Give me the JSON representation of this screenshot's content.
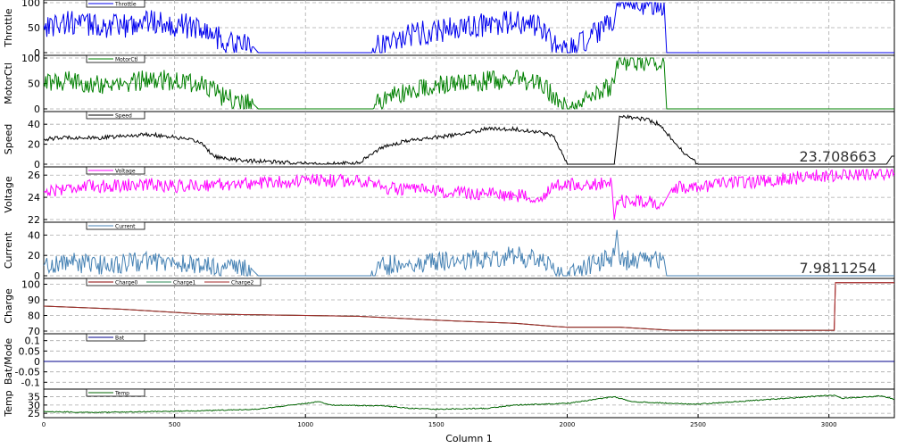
{
  "chart_data": {
    "type": "line",
    "xlabel": "Column 1",
    "xlim": [
      0,
      3250
    ],
    "x_ticks": [
      "0",
      "500",
      "1000",
      "1500",
      "2000",
      "2500",
      "3000"
    ],
    "grid": true,
    "panels": [
      {
        "ylabel": "Throttle",
        "ylim": [
          0,
          100
        ],
        "y_ticks": [
          "0",
          "50",
          "100"
        ],
        "readout": "",
        "legend": [
          {
            "name": "Throttle",
            "color": "#0000ee"
          }
        ],
        "series": [
          {
            "name": "Throttle",
            "color": "#0000ee",
            "noise": 25,
            "points": [
              [
                0,
                55
              ],
              [
                100,
                60
              ],
              [
                200,
                55
              ],
              [
                300,
                50
              ],
              [
                380,
                65
              ],
              [
                450,
                60
              ],
              [
                520,
                55
              ],
              [
                600,
                50
              ],
              [
                700,
                20
              ],
              [
                800,
                12
              ],
              [
                820,
                0
              ],
              [
                1250,
                0
              ],
              [
                1300,
                20
              ],
              [
                1400,
                35
              ],
              [
                1500,
                45
              ],
              [
                1600,
                50
              ],
              [
                1700,
                55
              ],
              [
                1800,
                60
              ],
              [
                1900,
                50
              ],
              [
                1950,
                20
              ],
              [
                2000,
                0
              ],
              [
                2180,
                60
              ],
              [
                2190,
                100
              ],
              [
                2370,
                100
              ],
              [
                2380,
                0
              ],
              [
                2500,
                0
              ],
              [
                3250,
                0
              ]
            ]
          }
        ]
      },
      {
        "ylabel": "MotorCtl",
        "ylim": [
          0,
          100
        ],
        "y_ticks": [
          "0",
          "50",
          "100"
        ],
        "readout": "",
        "legend": [
          {
            "name": "MotorCtl",
            "color": "#008000"
          }
        ],
        "series": [
          {
            "name": "MotorCtl",
            "color": "#008000",
            "noise": 20,
            "points": [
              [
                0,
                50
              ],
              [
                100,
                55
              ],
              [
                200,
                50
              ],
              [
                300,
                45
              ],
              [
                400,
                60
              ],
              [
                500,
                55
              ],
              [
                600,
                50
              ],
              [
                700,
                20
              ],
              [
                800,
                10
              ],
              [
                820,
                0
              ],
              [
                1250,
                0
              ],
              [
                1300,
                20
              ],
              [
                1400,
                35
              ],
              [
                1500,
                45
              ],
              [
                1600,
                50
              ],
              [
                1700,
                55
              ],
              [
                1800,
                60
              ],
              [
                1900,
                50
              ],
              [
                1950,
                20
              ],
              [
                2000,
                0
              ],
              [
                2180,
                50
              ],
              [
                2190,
                95
              ],
              [
                2370,
                92
              ],
              [
                2380,
                0
              ],
              [
                2500,
                0
              ],
              [
                3250,
                0
              ]
            ]
          }
        ]
      },
      {
        "ylabel": "Speed",
        "ylim": [
          0,
          50
        ],
        "y_ticks": [
          "0",
          "20",
          "40"
        ],
        "readout": "23.708663",
        "legend": [
          {
            "name": "Speed",
            "color": "#000000"
          }
        ],
        "series": [
          {
            "name": "Speed",
            "color": "#000000",
            "noise": 2,
            "points": [
              [
                0,
                25
              ],
              [
                100,
                27
              ],
              [
                200,
                26
              ],
              [
                300,
                28
              ],
              [
                400,
                30
              ],
              [
                500,
                27
              ],
              [
                600,
                22
              ],
              [
                650,
                8
              ],
              [
                700,
                5
              ],
              [
                820,
                3
              ],
              [
                1050,
                0
              ],
              [
                1200,
                1
              ],
              [
                1250,
                10
              ],
              [
                1300,
                18
              ],
              [
                1400,
                24
              ],
              [
                1500,
                27
              ],
              [
                1600,
                30
              ],
              [
                1700,
                36
              ],
              [
                1800,
                35
              ],
              [
                1900,
                32
              ],
              [
                1950,
                28
              ],
              [
                2000,
                0
              ],
              [
                2180,
                0
              ],
              [
                2200,
                48
              ],
              [
                2300,
                45
              ],
              [
                2350,
                40
              ],
              [
                2400,
                25
              ],
              [
                2450,
                10
              ],
              [
                2500,
                0
              ],
              [
                3220,
                0
              ],
              [
                3240,
                8
              ],
              [
                3250,
                8
              ]
            ]
          }
        ]
      },
      {
        "ylabel": "Voltage",
        "ylim": [
          22,
          26.5
        ],
        "y_ticks": [
          "22",
          "24",
          "26"
        ],
        "readout": "",
        "legend": [
          {
            "name": "Voltage",
            "color": "#ff00ff"
          }
        ],
        "series": [
          {
            "name": "Voltage",
            "color": "#ff00ff",
            "noise": 0.6,
            "points": [
              [
                0,
                24.5
              ],
              [
                100,
                24.9
              ],
              [
                200,
                25.0
              ],
              [
                300,
                25.1
              ],
              [
                400,
                25.2
              ],
              [
                500,
                25.0
              ],
              [
                600,
                25.1
              ],
              [
                700,
                25.2
              ],
              [
                820,
                25.3
              ],
              [
                1000,
                25.5
              ],
              [
                1250,
                25.5
              ],
              [
                1300,
                24.8
              ],
              [
                1400,
                24.7
              ],
              [
                1500,
                24.5
              ],
              [
                1600,
                24.4
              ],
              [
                1700,
                24.3
              ],
              [
                1800,
                24.2
              ],
              [
                1900,
                24.0
              ],
              [
                1950,
                25.0
              ],
              [
                2000,
                25.1
              ],
              [
                2170,
                25.2
              ],
              [
                2180,
                22.0
              ],
              [
                2190,
                23.7
              ],
              [
                2300,
                23.6
              ],
              [
                2370,
                23.5
              ],
              [
                2400,
                24.8
              ],
              [
                2500,
                25.0
              ],
              [
                3000,
                26.0
              ],
              [
                3250,
                26.2
              ]
            ]
          }
        ]
      },
      {
        "ylabel": "Current",
        "ylim": [
          0,
          50
        ],
        "y_ticks": [
          "0",
          "20",
          "40"
        ],
        "readout": "7.9811254",
        "legend": [
          {
            "name": "Current",
            "color": "#4682b4"
          }
        ],
        "series": [
          {
            "name": "Current",
            "color": "#4682b4",
            "noise": 10,
            "points": [
              [
                0,
                10
              ],
              [
                100,
                14
              ],
              [
                200,
                10
              ],
              [
                300,
                12
              ],
              [
                400,
                15
              ],
              [
                500,
                12
              ],
              [
                600,
                10
              ],
              [
                700,
                8
              ],
              [
                800,
                5
              ],
              [
                820,
                0
              ],
              [
                1250,
                0
              ],
              [
                1300,
                10
              ],
              [
                1400,
                12
              ],
              [
                1500,
                14
              ],
              [
                1600,
                15
              ],
              [
                1700,
                18
              ],
              [
                1800,
                20
              ],
              [
                1900,
                15
              ],
              [
                1950,
                5
              ],
              [
                2000,
                0
              ],
              [
                2180,
                20
              ],
              [
                2190,
                45
              ],
              [
                2200,
                15
              ],
              [
                2370,
                16
              ],
              [
                2380,
                0
              ],
              [
                2500,
                0
              ],
              [
                3250,
                0
              ]
            ]
          }
        ]
      },
      {
        "ylabel": "Charge",
        "ylim": [
          70,
          102
        ],
        "y_ticks": [
          "70",
          "80",
          "90",
          "100"
        ],
        "readout": "",
        "legend": [
          {
            "name": "Charge0",
            "color": "#8b0000"
          },
          {
            "name": "Charge1",
            "color": "#2e8b57"
          },
          {
            "name": "Charge2",
            "color": "#a52a2a"
          }
        ],
        "series": [
          {
            "name": "Charge0",
            "color": "#8b0000",
            "noise": 0,
            "points": [
              [
                0,
                86
              ],
              [
                300,
                84
              ],
              [
                600,
                81
              ],
              [
                1000,
                80
              ],
              [
                1200,
                79.5
              ],
              [
                1500,
                77
              ],
              [
                1800,
                75
              ],
              [
                1950,
                73
              ],
              [
                2000,
                72.5
              ],
              [
                2200,
                72.5
              ],
              [
                2400,
                70.5
              ],
              [
                3020,
                70.5
              ],
              [
                3025,
                101
              ],
              [
                3250,
                101
              ]
            ]
          },
          {
            "name": "Charge1",
            "color": "#2e8b57",
            "noise": 0,
            "points": [
              [
                0,
                86
              ],
              [
                300,
                84
              ],
              [
                600,
                81
              ],
              [
                1000,
                80
              ],
              [
                1200,
                79.5
              ],
              [
                1500,
                77
              ],
              [
                1800,
                75
              ],
              [
                1950,
                73
              ],
              [
                2000,
                72.5
              ],
              [
                2200,
                72.5
              ],
              [
                2400,
                70.5
              ],
              [
                3020,
                70.5
              ]
            ]
          },
          {
            "name": "Charge2",
            "color": "#a52a2a",
            "noise": 0,
            "points": [
              [
                0,
                86
              ],
              [
                300,
                84
              ],
              [
                600,
                81
              ],
              [
                1000,
                80
              ],
              [
                1200,
                79.5
              ],
              [
                1500,
                77
              ],
              [
                1800,
                75
              ],
              [
                1950,
                73
              ],
              [
                2000,
                72.5
              ],
              [
                2200,
                72.5
              ],
              [
                2400,
                70.5
              ],
              [
                3020,
                70.5
              ],
              [
                3025,
                101
              ],
              [
                3250,
                101
              ]
            ]
          }
        ]
      },
      {
        "ylabel": "Bat/Mode",
        "ylim": [
          -0.12,
          0.12
        ],
        "y_ticks": [
          "-0.1",
          "-0.05",
          "0",
          "0.05",
          "0.1"
        ],
        "readout": "",
        "legend": [
          {
            "name": "Bat",
            "color": "#00008b"
          }
        ],
        "series": [
          {
            "name": "Bat",
            "color": "#00008b",
            "noise": 0,
            "points": [
              [
                0,
                0
              ],
              [
                3250,
                0
              ]
            ]
          }
        ]
      },
      {
        "ylabel": "Temp",
        "ylim": [
          24,
          38
        ],
        "y_ticks": [
          "25",
          "30",
          "35"
        ],
        "readout": "",
        "legend": [
          {
            "name": "Temp",
            "color": "#006400"
          }
        ],
        "series": [
          {
            "name": "Temp",
            "color": "#006400",
            "noise": 0.3,
            "points": [
              [
                0,
                26
              ],
              [
                200,
                25.5
              ],
              [
                400,
                26
              ],
              [
                600,
                26.5
              ],
              [
                820,
                27.5
              ],
              [
                1050,
                32
              ],
              [
                1100,
                30
              ],
              [
                1300,
                29.5
              ],
              [
                1400,
                28
              ],
              [
                1500,
                27.5
              ],
              [
                1700,
                28
              ],
              [
                1800,
                30
              ],
              [
                2000,
                31
              ],
              [
                2180,
                35
              ],
              [
                2250,
                32
              ],
              [
                2400,
                31
              ],
              [
                2500,
                30.5
              ],
              [
                3020,
                36
              ],
              [
                3050,
                34
              ],
              [
                3200,
                35.5
              ],
              [
                3250,
                33.5
              ]
            ]
          }
        ]
      }
    ]
  }
}
